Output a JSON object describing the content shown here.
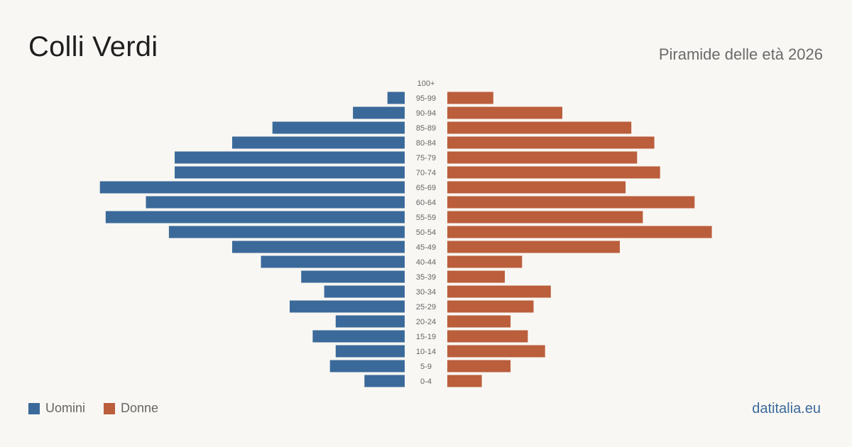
{
  "header": {
    "title": "Colli Verdi",
    "subtitle": "Piramide delle età 2026"
  },
  "legend": {
    "items": [
      {
        "label": "Uomini",
        "color": "#3b6a9a"
      },
      {
        "label": "Donne",
        "color": "#bb5e3c"
      }
    ]
  },
  "footer": {
    "source": "datitalia.eu"
  },
  "colors": {
    "men": "#3b6a9a",
    "women": "#bb5e3c",
    "label": "#666666",
    "background": "#f9f7f3"
  },
  "chart_data": {
    "type": "bar",
    "orientation": "horizontal-pyramid",
    "title": "Colli Verdi",
    "subtitle": "Piramide delle età 2026",
    "categories": [
      "100+",
      "95-99",
      "90-94",
      "85-89",
      "80-84",
      "75-79",
      "70-74",
      "65-69",
      "60-64",
      "55-59",
      "50-54",
      "45-49",
      "40-44",
      "35-39",
      "30-34",
      "25-29",
      "20-24",
      "15-19",
      "10-14",
      "5-9",
      "0-4"
    ],
    "series": [
      {
        "name": "Uomini",
        "values": [
          0,
          3,
          9,
          23,
          30,
          40,
          40,
          53,
          45,
          52,
          41,
          30,
          25,
          18,
          14,
          20,
          12,
          16,
          12,
          13,
          7
        ]
      },
      {
        "name": "Donne",
        "values": [
          0,
          8,
          20,
          32,
          36,
          33,
          37,
          31,
          43,
          34,
          46,
          30,
          13,
          10,
          18,
          15,
          11,
          14,
          17,
          11,
          6
        ]
      }
    ],
    "xlabel": "",
    "ylabel": "",
    "grid": false,
    "legend_position": "bottom-left"
  }
}
